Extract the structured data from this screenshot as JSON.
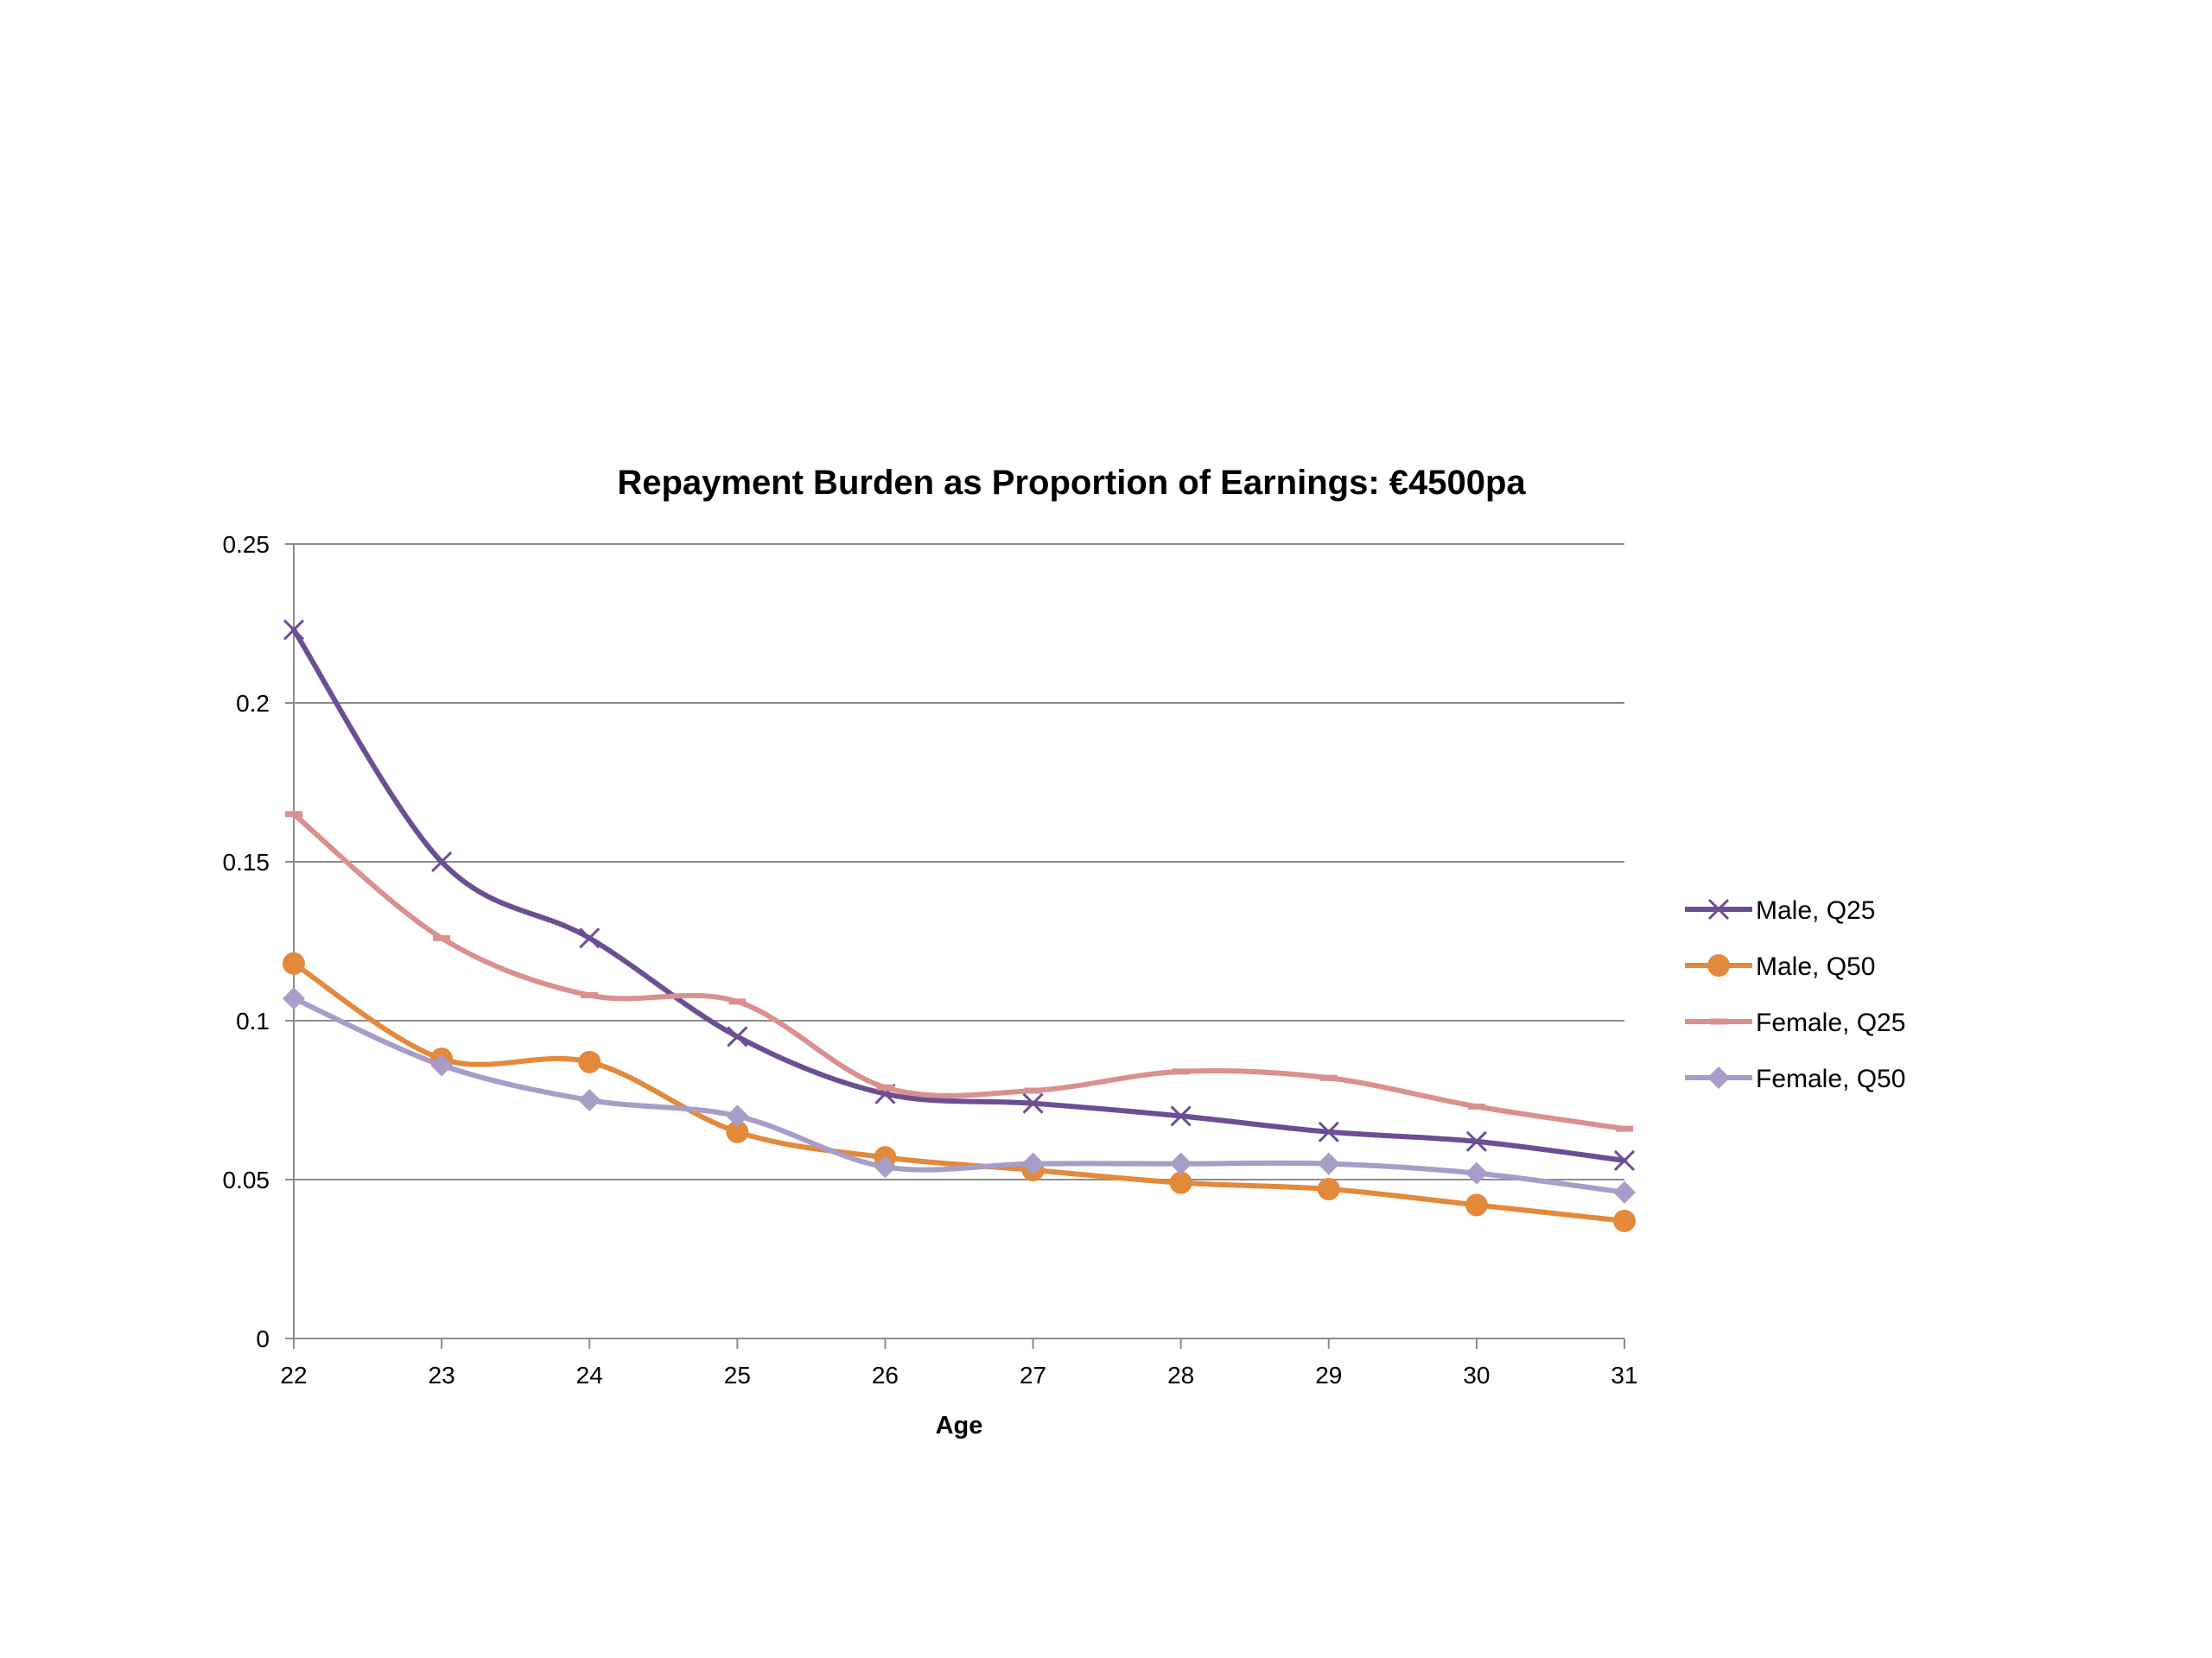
{
  "chart_data": {
    "type": "line",
    "title": "Repayment Burden as Proportion of Earnings: €4500pa",
    "xlabel": "Age",
    "ylabel": "",
    "x": [
      22,
      23,
      24,
      25,
      26,
      27,
      28,
      29,
      30,
      31
    ],
    "x_tick_labels": [
      "22",
      "23",
      "24",
      "25",
      "26",
      "27",
      "28",
      "29",
      "30",
      "31"
    ],
    "ylim": [
      0,
      0.25
    ],
    "y_ticks": [
      0,
      0.05,
      0.1,
      0.15,
      0.2,
      0.25
    ],
    "y_tick_labels": [
      "0",
      "0.05",
      "0.1",
      "0.15",
      "0.2",
      "0.25"
    ],
    "grid": "horizontal",
    "smooth": true,
    "legend_position": "right",
    "series": [
      {
        "name": "Male, Q25",
        "color": "#6B4E94",
        "marker": "x",
        "values": [
          0.223,
          0.15,
          0.126,
          0.095,
          0.077,
          0.074,
          0.07,
          0.065,
          0.062,
          0.056
        ]
      },
      {
        "name": "Male, Q50",
        "color": "#E3893C",
        "marker": "circle",
        "values": [
          0.118,
          0.088,
          0.087,
          0.065,
          0.057,
          0.053,
          0.049,
          0.047,
          0.042,
          0.037
        ]
      },
      {
        "name": "Female, Q25",
        "color": "#D9908E",
        "marker": "dash",
        "values": [
          0.165,
          0.126,
          0.108,
          0.106,
          0.079,
          0.078,
          0.084,
          0.082,
          0.073,
          0.066
        ]
      },
      {
        "name": "Female, Q50",
        "color": "#A89CC8",
        "marker": "diamond",
        "values": [
          0.107,
          0.086,
          0.075,
          0.07,
          0.054,
          0.055,
          0.055,
          0.055,
          0.052,
          0.046
        ]
      }
    ]
  }
}
